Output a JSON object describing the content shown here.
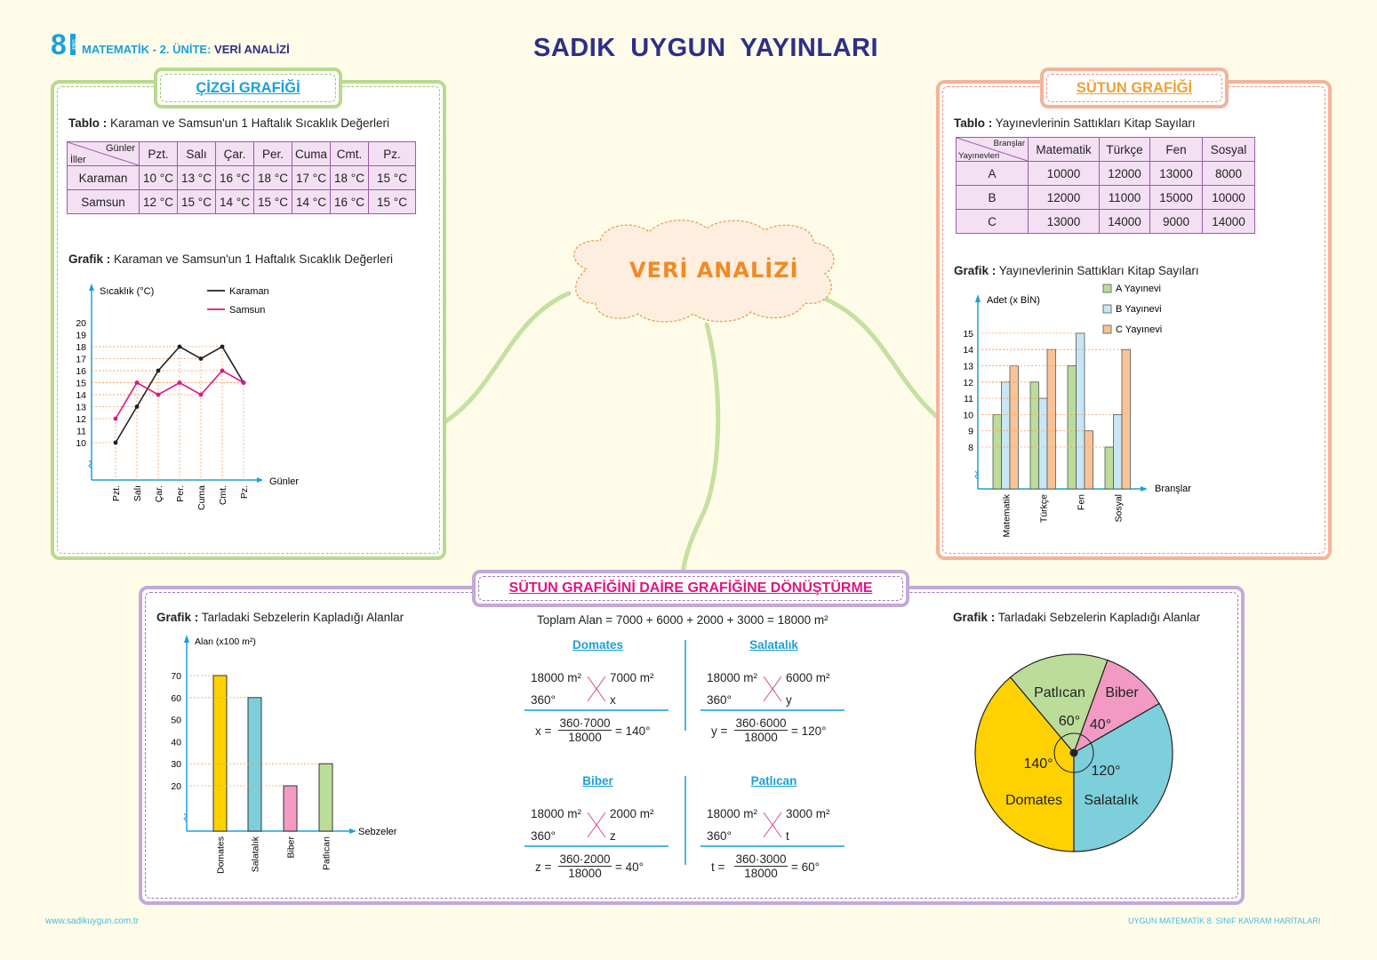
{
  "header": {
    "grade_number": "8",
    "grade_label": "SINIF",
    "unit_prefix": "MATEMATİK - 2. ÜNİTE:",
    "unit_name": "VERİ ANALİZİ",
    "publisher_title": "SADIK  UYGUN  YAYINLARI"
  },
  "center_node": {
    "label": "VERİ ANALİZİ"
  },
  "line_panel": {
    "tag": "ÇİZGİ GRAFİĞİ",
    "table_caption_bold": "Tablo :",
    "table_caption": "Karaman ve Samsun'un 1 Haftalık Sıcaklık Değerleri",
    "table_corner_top": "Günler",
    "table_corner_bottom": "İller",
    "table_headers": [
      "Pzt.",
      "Salı",
      "Çar.",
      "Per.",
      "Cuma",
      "Cmt.",
      "Pz."
    ],
    "table_rows": [
      {
        "label": "Karaman",
        "cells": [
          "10 °C",
          "13 °C",
          "16 °C",
          "18 °C",
          "17 °C",
          "18 °C",
          "15 °C"
        ]
      },
      {
        "label": "Samsun",
        "cells": [
          "12 °C",
          "15 °C",
          "14 °C",
          "15 °C",
          "14 °C",
          "16 °C",
          "15 °C"
        ]
      }
    ],
    "chart_caption_bold": "Grafik :",
    "chart_caption": "Karaman ve Samsun'un 1 Haftalık Sıcaklık Değerleri"
  },
  "bar_panel": {
    "tag": "SÜTUN GRAFİĞİ",
    "table_caption_bold": "Tablo :",
    "table_caption": "Yayınevlerinin Sattıkları Kitap Sayıları",
    "table_corner_top": "Branşlar",
    "table_corner_bottom": "Yayınevleri",
    "table_headers": [
      "Matematik",
      "Türkçe",
      "Fen",
      "Sosyal"
    ],
    "table_rows": [
      {
        "label": "A",
        "cells": [
          "10000",
          "12000",
          "13000",
          "8000"
        ]
      },
      {
        "label": "B",
        "cells": [
          "12000",
          "11000",
          "15000",
          "10000"
        ]
      },
      {
        "label": "C",
        "cells": [
          "13000",
          "14000",
          "9000",
          "14000"
        ]
      }
    ],
    "chart_caption_bold": "Grafik :",
    "chart_caption": "Yayınevlerinin Sattıkları Kitap Sayıları"
  },
  "conversion_panel": {
    "tag": "SÜTUN GRAFİĞİNİ DAİRE GRAFİĞİNE DÖNÜŞTÜRME",
    "bar_caption_bold": "Grafik :",
    "bar_caption": "Tarladaki Sebzelerin Kapladığı Alanlar",
    "pie_caption_bold": "Grafik :",
    "pie_caption": "Tarladaki Sebzelerin Kapladığı Alanlar",
    "total": "Toplam Alan = 7000 + 6000 + 2000 + 3000 = 18000 m²",
    "calcs": [
      {
        "title": "Domates",
        "total": "18000 m²",
        "part": "7000 m²",
        "deg": "360°",
        "var": "x",
        "lhs": "x =",
        "num": "360·7000",
        "den": "18000",
        "result": "= 140°"
      },
      {
        "title": "Salatalık",
        "total": "18000 m²",
        "part": "6000 m²",
        "deg": "360°",
        "var": "y",
        "lhs": "y =",
        "num": "360·6000",
        "den": "18000",
        "result": "= 120°"
      },
      {
        "title": "Biber",
        "total": "18000 m²",
        "part": "2000 m²",
        "deg": "360°",
        "var": "z",
        "lhs": "z =",
        "num": "360·2000",
        "den": "18000",
        "result": "= 40°"
      },
      {
        "title": "Patlıcan",
        "total": "18000 m²",
        "part": "3000 m²",
        "deg": "360°",
        "var": "t",
        "lhs": "t =",
        "num": "360·3000",
        "den": "18000",
        "result": "= 60°"
      }
    ]
  },
  "footer": {
    "website": "www.sadikuygun.com.tr",
    "series": "UYGUN MATEMATİK 8. SINIF KAVRAM HARİTALARI"
  },
  "colors": {
    "navy": "#2e2f86",
    "cyan": "#1aa0dc",
    "green_frame": "#b8d98e",
    "orange_frame": "#f4b39a",
    "purple_frame": "#c4a8d9",
    "magenta": "#e0157f",
    "orange_text": "#f08a24"
  },
  "chart_data": [
    {
      "type": "line",
      "title": "Karaman ve Samsun'un 1 Haftalık Sıcaklık Değerleri",
      "xlabel": "Günler",
      "ylabel": "Sıcaklık (°C)",
      "categories": [
        "Pzt.",
        "Salı",
        "Çar.",
        "Per.",
        "Cuma",
        "Cmt.",
        "Pz."
      ],
      "series": [
        {
          "name": "Karaman",
          "color": "#222222",
          "values": [
            10,
            13,
            16,
            18,
            17,
            18,
            15
          ]
        },
        {
          "name": "Samsun",
          "color": "#e0157f",
          "values": [
            12,
            15,
            14,
            15,
            14,
            16,
            15
          ]
        }
      ],
      "yticks": [
        10,
        11,
        12,
        13,
        14,
        15,
        16,
        17,
        18,
        19,
        20
      ],
      "ylim": [
        10,
        20
      ],
      "legend_position": "top"
    },
    {
      "type": "bar",
      "title": "Yayınevlerinin Sattıkları Kitap Sayıları",
      "xlabel": "Branşlar",
      "ylabel": "Adet (x BİN)",
      "categories": [
        "Matematik",
        "Türkçe",
        "Fen",
        "Sosyal"
      ],
      "series": [
        {
          "name": "A  Yayınevi",
          "color": "#bcdc9a",
          "values": [
            10,
            12,
            13,
            8
          ]
        },
        {
          "name": "B  Yayınevi",
          "color": "#c8e6f4",
          "values": [
            12,
            11,
            15,
            10
          ]
        },
        {
          "name": "C  Yayınevi",
          "color": "#f8c496",
          "values": [
            13,
            14,
            9,
            14
          ]
        }
      ],
      "yticks": [
        8,
        9,
        10,
        11,
        12,
        13,
        14,
        15
      ],
      "ylim": [
        8,
        15
      ],
      "legend_position": "top-right"
    },
    {
      "type": "bar",
      "title": "Tarladaki Sebzelerin Kapladığı Alanlar",
      "xlabel": "Sebzeler",
      "ylabel": "Alan (x100 m²)",
      "categories": [
        "Domates",
        "Salatalık",
        "Biber",
        "Patlıcan"
      ],
      "values": [
        70,
        60,
        20,
        30
      ],
      "colors": [
        "#ffd100",
        "#7ecfdc",
        "#f29ac3",
        "#bcdc9a"
      ],
      "yticks": [
        20,
        30,
        40,
        50,
        60,
        70
      ],
      "ylim": [
        20,
        70
      ]
    },
    {
      "type": "pie",
      "title": "Tarladaki Sebzelerin Kapladığı Alanlar",
      "categories": [
        "Domates",
        "Salatalık",
        "Biber",
        "Patlıcan"
      ],
      "values": [
        140,
        120,
        40,
        60
      ],
      "labels": [
        "140°",
        "120°",
        "40°",
        "60°"
      ],
      "colors": [
        "#ffd100",
        "#7ecfdc",
        "#f29ac3",
        "#bcdc9a"
      ]
    }
  ]
}
